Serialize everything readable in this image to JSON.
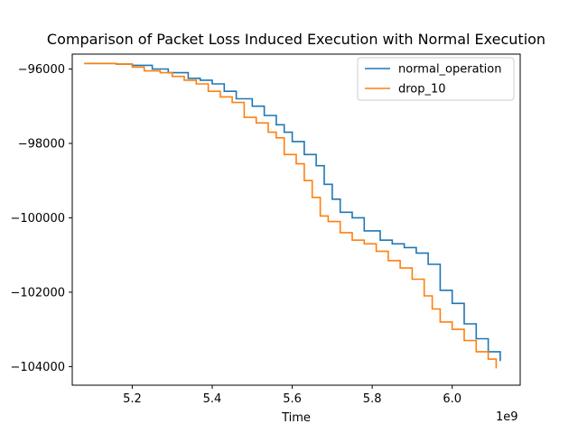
{
  "chart_data": {
    "type": "line",
    "title": "Comparison of Packet Loss Induced Execution with Normal Execution",
    "xlabel": "Time",
    "ylabel": "",
    "x_offset_label": "1e9",
    "xlim": [
      5.05,
      6.17
    ],
    "ylim": [
      -104500,
      -95600
    ],
    "x_ticks": [
      5.2,
      5.4,
      5.6,
      5.8,
      6.0
    ],
    "x_tick_labels": [
      "5.2",
      "5.4",
      "5.6",
      "5.8",
      "6.0"
    ],
    "y_ticks": [
      -96000,
      -98000,
      -100000,
      -102000,
      -104000
    ],
    "y_tick_labels": [
      "−96000",
      "−98000",
      "−100000",
      "−102000",
      "−104000"
    ],
    "legend_position": "upper-right",
    "series": [
      {
        "name": "normal_operation",
        "color": "#1f77b4",
        "x": [
          5.08,
          5.1,
          5.13,
          5.16,
          5.2,
          5.25,
          5.29,
          5.34,
          5.37,
          5.4,
          5.43,
          5.46,
          5.5,
          5.53,
          5.56,
          5.58,
          5.6,
          5.63,
          5.66,
          5.68,
          5.7,
          5.72,
          5.75,
          5.78,
          5.82,
          5.85,
          5.88,
          5.91,
          5.94,
          5.97,
          6.0,
          6.03,
          6.06,
          6.09,
          6.12
        ],
        "y": [
          -95850,
          -95850,
          -95850,
          -95870,
          -95900,
          -96000,
          -96100,
          -96250,
          -96300,
          -96400,
          -96600,
          -96800,
          -97000,
          -97250,
          -97500,
          -97700,
          -97950,
          -98300,
          -98600,
          -99100,
          -99500,
          -99850,
          -100000,
          -100350,
          -100600,
          -100700,
          -100800,
          -100950,
          -101250,
          -101950,
          -102300,
          -102850,
          -103250,
          -103600,
          -103850
        ]
      },
      {
        "name": "drop_10",
        "color": "#ff7f0e",
        "x": [
          5.08,
          5.12,
          5.16,
          5.2,
          5.23,
          5.27,
          5.3,
          5.33,
          5.36,
          5.39,
          5.42,
          5.45,
          5.48,
          5.51,
          5.54,
          5.56,
          5.58,
          5.61,
          5.63,
          5.65,
          5.67,
          5.69,
          5.72,
          5.75,
          5.78,
          5.81,
          5.84,
          5.87,
          5.9,
          5.93,
          5.95,
          5.97,
          6.0,
          6.03,
          6.06,
          6.09,
          6.11
        ],
        "y": [
          -95850,
          -95850,
          -95870,
          -95950,
          -96050,
          -96100,
          -96200,
          -96300,
          -96400,
          -96600,
          -96750,
          -96900,
          -97300,
          -97450,
          -97700,
          -97850,
          -98300,
          -98550,
          -99000,
          -99450,
          -99950,
          -100100,
          -100400,
          -100600,
          -100700,
          -100900,
          -101150,
          -101350,
          -101650,
          -102100,
          -102450,
          -102800,
          -103000,
          -103300,
          -103600,
          -103800,
          -104050
        ]
      }
    ]
  }
}
